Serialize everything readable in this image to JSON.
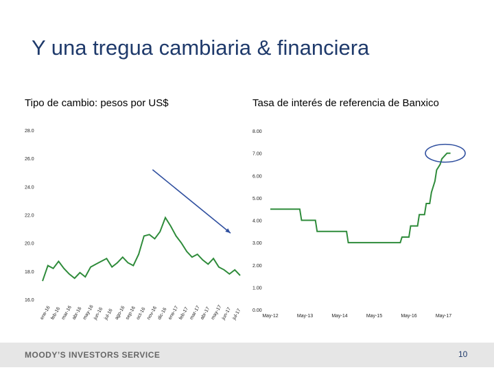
{
  "slide": {
    "title": "Y una tregua cambiaria & financiera",
    "footer": "MOODY’S INVESTORS SERVICE",
    "page_number": "10"
  },
  "colors": {
    "title": "#1f3a6b",
    "line": "#2e8b3a",
    "arrow": "#2f4f9f",
    "ellipse": "#2f4f9f"
  },
  "chart_data": [
    {
      "type": "line",
      "title": "Tipo de cambio: pesos por US$",
      "ylim": [
        16.0,
        28.0
      ],
      "yticks": [
        "28.0",
        "26.0",
        "24.0",
        "22.0",
        "20.0",
        "18.0",
        "16.0"
      ],
      "xticks": [
        "ene-16",
        "feb-16",
        "mar-16",
        "abr-16",
        "may-16",
        "jun-16",
        "jul-16",
        "ago-16",
        "sep-16",
        "oct-16",
        "nov-16",
        "dic-16",
        "ene-17",
        "feb-17",
        "mar-17",
        "abr-17",
        "may-17",
        "jun-17",
        "jul-17"
      ],
      "x": [
        0,
        0.5,
        1,
        1.5,
        2,
        2.5,
        3,
        3.5,
        4,
        4.5,
        5,
        5.5,
        6,
        6.5,
        7,
        7.5,
        8,
        8.5,
        9,
        9.5,
        10,
        10.5,
        11,
        11.5,
        12,
        12.5,
        13,
        13.5,
        14,
        14.5,
        15,
        15.5,
        16,
        16.5,
        17,
        17.5,
        18,
        18.5
      ],
      "values": [
        17.3,
        18.4,
        18.2,
        18.7,
        18.2,
        17.8,
        17.5,
        17.9,
        17.6,
        18.3,
        18.5,
        18.7,
        18.9,
        18.3,
        18.6,
        19.0,
        18.6,
        18.4,
        19.2,
        20.5,
        20.6,
        20.3,
        20.8,
        21.8,
        21.2,
        20.5,
        20.0,
        19.4,
        19.0,
        19.2,
        18.8,
        18.5,
        18.9,
        18.3,
        18.1,
        17.8,
        18.1,
        17.7
      ],
      "annotation": "down-arrow"
    },
    {
      "type": "line",
      "title": "Tasa de interés de referencia de Banxico",
      "ylim": [
        0.0,
        8.0
      ],
      "yticks": [
        "8.00",
        "7.00",
        "6.00",
        "5.00",
        "4.00",
        "3.00",
        "2.00",
        "1.00",
        "0.00"
      ],
      "xticks": [
        "May-12",
        "May-13",
        "May-14",
        "May-15",
        "May-16",
        "May-17"
      ],
      "x": [
        0,
        0.85,
        0.9,
        1.3,
        1.35,
        2.0,
        2.2,
        2.25,
        3.6,
        3.75,
        3.8,
        4.0,
        4.05,
        4.25,
        4.3,
        4.45,
        4.5,
        4.6,
        4.65,
        4.75,
        4.8,
        4.9,
        4.95,
        5.1,
        5.2
      ],
      "values": [
        4.5,
        4.5,
        4.0,
        4.0,
        3.5,
        3.5,
        3.5,
        3.0,
        3.0,
        3.0,
        3.25,
        3.25,
        3.75,
        3.75,
        4.25,
        4.25,
        4.75,
        4.75,
        5.25,
        5.75,
        6.25,
        6.5,
        6.75,
        7.0,
        7.0
      ],
      "annotation": "ellipse-highlight"
    }
  ]
}
